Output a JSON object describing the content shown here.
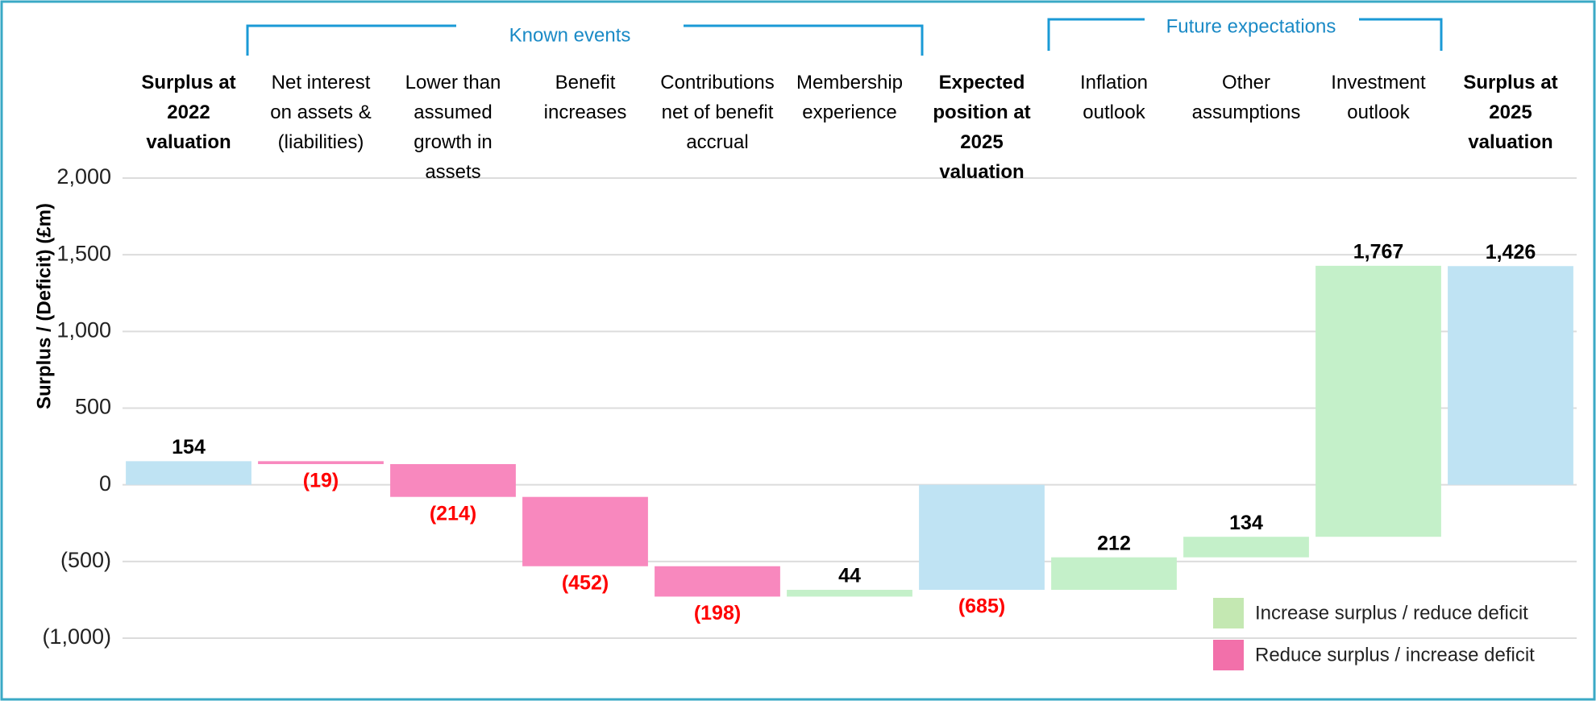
{
  "chart_data": {
    "type": "waterfall",
    "y_label": "Surplus / (Deficit) (£m)",
    "groups": [
      "Known events",
      "Future expectations"
    ],
    "categories": [
      "Surplus at\n2022 valuation",
      "Net interest\non assets &\n(liabilities)",
      "Lower than\nassumed\ngrowth in\nassets",
      "Benefit\nincreases",
      "Contributions\nnet of benefit\naccrual",
      "Membership\nexperience",
      "Expected\nposition at\n2025 valuation",
      "Inflation\noutlook",
      "Other\nassumptions",
      "Investment\noutlook",
      "Surplus at\n2025 valuation"
    ],
    "values": [
      154,
      -19,
      -214,
      -452,
      -198,
      44,
      -685,
      212,
      134,
      1767,
      1426
    ],
    "value_labels": [
      "154",
      "(19)",
      "(214)",
      "(452)",
      "(198)",
      "44",
      "(685)",
      "212",
      "134",
      "1,767",
      "1,426"
    ],
    "is_total": [
      true,
      false,
      false,
      false,
      false,
      false,
      true,
      false,
      false,
      false,
      true
    ],
    "colors": {
      "total": "#bfe3f3",
      "increase": "#c4f0c9",
      "decrease": "#f888be"
    },
    "label_colors": {
      "positive": "#000000",
      "negative": "#ff0000"
    },
    "ylim": [
      -1000,
      2000
    ],
    "yticks": [
      {
        "value": 2000,
        "label": "2,000"
      },
      {
        "value": 1500,
        "label": "1,500"
      },
      {
        "value": 1000,
        "label": "1,000"
      },
      500,
      0,
      {
        "value": -500,
        "label": "(500)"
      },
      {
        "value": -1000,
        "label": "(1,000)"
      }
    ],
    "grid": true,
    "legend": {
      "position": "lower right",
      "entries": [
        {
          "label": "Increase surplus / reduce deficit",
          "color": "#c4e8b2"
        },
        {
          "label": "Reduce surplus / increase deficit",
          "color": "#f270aa"
        }
      ]
    }
  }
}
